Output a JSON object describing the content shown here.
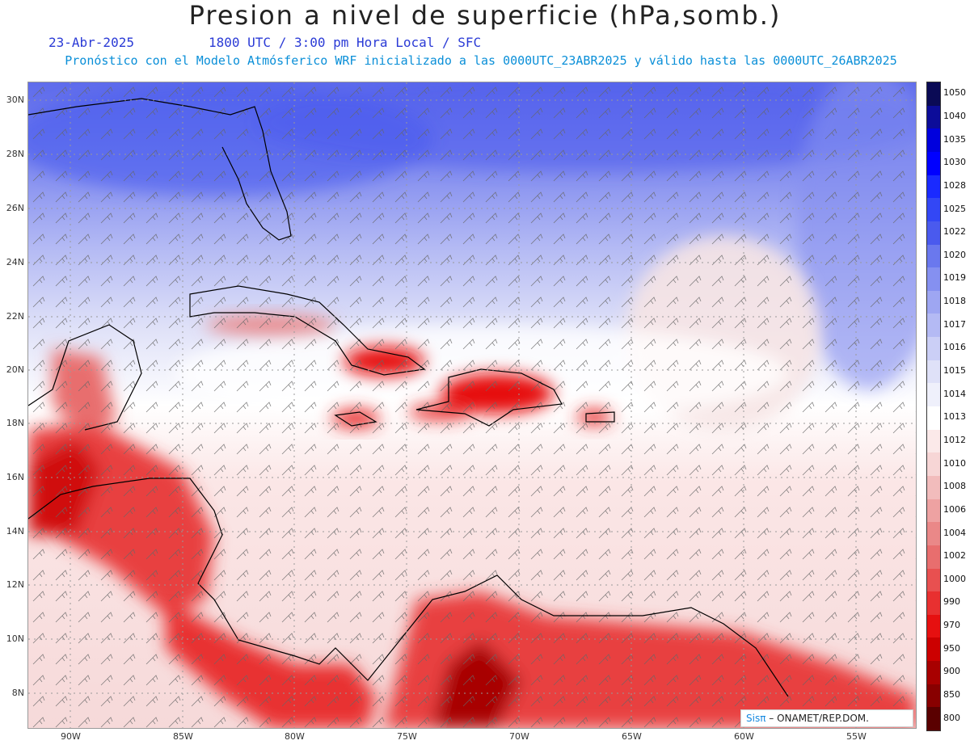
{
  "header": {
    "title": "Presion a nivel de superficie (hPa,somb.)",
    "date": "23-Abr-2025",
    "time_line": "1800 UTC / 3:00 pm Hora Local / SFC",
    "model_line": "Pronóstico con el Modelo Atmósferico WRF inicializado a las 0000UTC_23ABR2025 y válido hasta las  0000UTC_26ABR2025"
  },
  "axes": {
    "lat_labels": [
      "30N",
      "28N",
      "26N",
      "24N",
      "22N",
      "20N",
      "18N",
      "16N",
      "14N",
      "12N",
      "10N",
      "8N"
    ],
    "lon_labels": [
      "90W",
      "85W",
      "80W",
      "75W",
      "70W",
      "65W",
      "60W",
      "55W"
    ]
  },
  "legend": {
    "levels": [
      "1050",
      "1040",
      "1035",
      "1030",
      "1028",
      "1025",
      "1022",
      "1020",
      "1019",
      "1018",
      "1017",
      "1016",
      "1015",
      "1014",
      "1013",
      "1012",
      "1010",
      "1008",
      "1006",
      "1004",
      "1002",
      "1000",
      "990",
      "970",
      "950",
      "900",
      "850",
      "800"
    ],
    "colors": [
      "#0a0a55",
      "#0c0c99",
      "#0000dd",
      "#0000ff",
      "#1a2aff",
      "#3347f5",
      "#4a5aee",
      "#6a78ee",
      "#8590f0",
      "#9ea6f2",
      "#b4baf4",
      "#cbcff6",
      "#dfe1f8",
      "#eff0fb",
      "#ffffff",
      "#fbe9e9",
      "#f7d6d6",
      "#f2bcbc",
      "#eea2a2",
      "#ea8888",
      "#e86e6e",
      "#e85050",
      "#e83030",
      "#e61010",
      "#cc0000",
      "#a80000",
      "#880000",
      "#5a0000"
    ]
  },
  "credit": {
    "brand": "Sisπ",
    "rest": "– ONAMET/REP.DOM."
  }
}
